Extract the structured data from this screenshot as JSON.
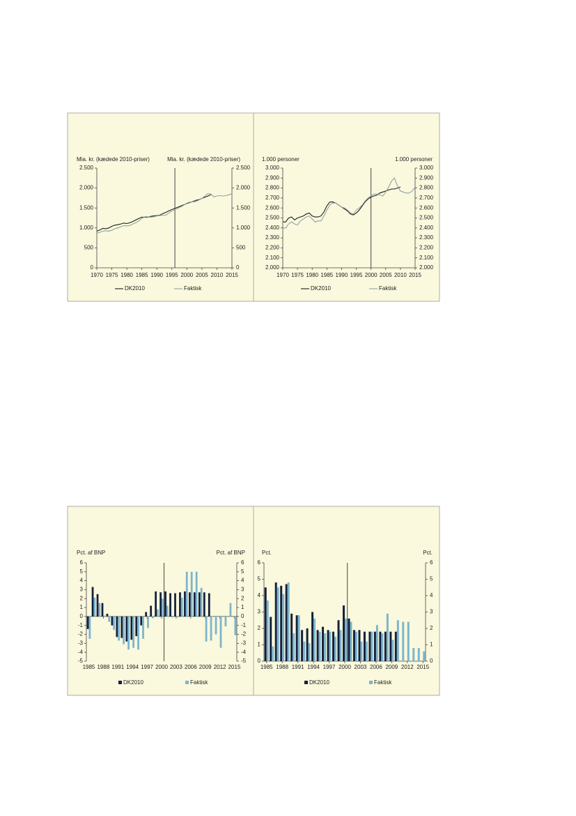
{
  "chart_data": [
    {
      "type": "line",
      "ylabel": "Mia. kr. (kædede 2010-priser)",
      "y2label": "Mia. kr. (kædede 2010-priser)",
      "x": [
        1970,
        1971,
        1972,
        1973,
        1974,
        1975,
        1976,
        1977,
        1978,
        1979,
        1980,
        1981,
        1982,
        1983,
        1984,
        1985,
        1986,
        1987,
        1988,
        1989,
        1990,
        1991,
        1992,
        1993,
        1994,
        1995,
        1996,
        1997,
        1998,
        1999,
        2000,
        2001,
        2002,
        2003,
        2004,
        2005,
        2006,
        2007,
        2008,
        2009,
        2010,
        2011,
        2012,
        2013,
        2014,
        2015
      ],
      "xlim": [
        1970,
        2015
      ],
      "xticks": [
        1970,
        1975,
        1980,
        1985,
        1990,
        1995,
        2000,
        2005,
        2010,
        2015
      ],
      "ylim": [
        0,
        2500
      ],
      "yticks": [
        0,
        500,
        {
          "value": 1000,
          "label": "1.000"
        },
        {
          "value": 1500,
          "label": "1.500"
        },
        {
          "value": 2000,
          "label": "2.000"
        },
        {
          "value": 2500,
          "label": "2.500"
        }
      ],
      "y2lim": [
        0,
        2500
      ],
      "y2ticks": [
        0,
        500,
        {
          "value": 1000,
          "label": "1.000"
        },
        {
          "value": 1500,
          "label": "1.500"
        },
        {
          "value": 2000,
          "label": "2.000"
        },
        {
          "value": 2500,
          "label": "2.500"
        }
      ],
      "vline": 1996,
      "series": [
        {
          "name": "DK2010",
          "color": "#1c1c1c",
          "values": [
            920,
            950,
            990,
            980,
            1000,
            1040,
            1070,
            1080,
            1100,
            1120,
            1110,
            1130,
            1160,
            1200,
            1240,
            1270,
            1270,
            1270,
            1290,
            1300,
            1310,
            1320,
            1360,
            1390,
            1430,
            1460,
            1490,
            1520,
            1550,
            1580,
            1610,
            1640,
            1660,
            1690,
            1710,
            1740,
            1770,
            1800,
            1830,
            null,
            null,
            null,
            null,
            null,
            null,
            null
          ]
        },
        {
          "name": "Faktisk",
          "color": "#8fa3a6",
          "values": [
            860,
            890,
            920,
            930,
            920,
            940,
            980,
            1000,
            1030,
            1060,
            1050,
            1060,
            1100,
            1130,
            1180,
            1240,
            1280,
            1280,
            1270,
            1280,
            1300,
            1310,
            1320,
            1320,
            1380,
            1420,
            1460,
            1490,
            1530,
            1570,
            1620,
            1650,
            1650,
            1660,
            1700,
            1740,
            1800,
            1860,
            1850,
            1780,
            1800,
            1810,
            1800,
            1810,
            1830,
            1860
          ]
        }
      ]
    },
    {
      "type": "line",
      "ylabel": "1.000 personer",
      "y2label": "1.000 personer",
      "x": [
        1970,
        1971,
        1972,
        1973,
        1974,
        1975,
        1976,
        1977,
        1978,
        1979,
        1980,
        1981,
        1982,
        1983,
        1984,
        1985,
        1986,
        1987,
        1988,
        1989,
        1990,
        1991,
        1992,
        1993,
        1994,
        1995,
        1996,
        1997,
        1998,
        1999,
        2000,
        2001,
        2002,
        2003,
        2004,
        2005,
        2006,
        2007,
        2008,
        2009,
        2010,
        2011,
        2012,
        2013,
        2014,
        2015
      ],
      "xlim": [
        1970,
        2015
      ],
      "xticks": [
        1970,
        1975,
        1980,
        1985,
        1990,
        1995,
        2000,
        2005,
        2010,
        2015
      ],
      "ylim": [
        2000,
        3000
      ],
      "yticks": [
        {
          "value": 2000,
          "label": "2.000"
        },
        {
          "value": 2100,
          "label": "2.100"
        },
        {
          "value": 2200,
          "label": "2.200"
        },
        {
          "value": 2300,
          "label": "2.300"
        },
        {
          "value": 2400,
          "label": "2.400"
        },
        {
          "value": 2500,
          "label": "2.500"
        },
        {
          "value": 2600,
          "label": "2.600"
        },
        {
          "value": 2700,
          "label": "2.700"
        },
        {
          "value": 2800,
          "label": "2.800"
        },
        {
          "value": 2900,
          "label": "2.900"
        },
        {
          "value": 3000,
          "label": "3.000"
        }
      ],
      "y2lim": [
        2000,
        3000
      ],
      "y2ticks": [
        {
          "value": 2000,
          "label": "2.000"
        },
        {
          "value": 2100,
          "label": "2.100"
        },
        {
          "value": 2200,
          "label": "2.200"
        },
        {
          "value": 2300,
          "label": "2.300"
        },
        {
          "value": 2400,
          "label": "2.400"
        },
        {
          "value": 2500,
          "label": "2.500"
        },
        {
          "value": 2600,
          "label": "2.600"
        },
        {
          "value": 2700,
          "label": "2.700"
        },
        {
          "value": 2800,
          "label": "2.800"
        },
        {
          "value": 2900,
          "label": "2.900"
        },
        {
          "value": 3000,
          "label": "3.000"
        }
      ],
      "vline": 2000,
      "series": [
        {
          "name": "DK2010",
          "color": "#1c1c1c",
          "values": [
            2460,
            2460,
            2500,
            2510,
            2480,
            2500,
            2510,
            2520,
            2540,
            2550,
            2520,
            2510,
            2510,
            2520,
            2560,
            2620,
            2660,
            2660,
            2650,
            2630,
            2610,
            2590,
            2570,
            2540,
            2530,
            2550,
            2580,
            2620,
            2660,
            2690,
            2710,
            2720,
            2730,
            2750,
            2760,
            2770,
            2780,
            2790,
            2790,
            2800,
            2810,
            null,
            null,
            null,
            null,
            null
          ]
        },
        {
          "name": "Faktisk",
          "color": "#8fa3a6",
          "values": [
            2400,
            2400,
            2440,
            2460,
            2440,
            2430,
            2470,
            2490,
            2510,
            2520,
            2490,
            2460,
            2470,
            2470,
            2520,
            2580,
            2630,
            2650,
            2650,
            2630,
            2610,
            2600,
            2580,
            2550,
            2540,
            2580,
            2600,
            2630,
            2670,
            2700,
            2720,
            2740,
            2740,
            2730,
            2720,
            2760,
            2810,
            2870,
            2900,
            2820,
            2770,
            2760,
            2750,
            2750,
            2770,
            2810
          ]
        }
      ]
    },
    {
      "type": "bar",
      "ylabel": "Pct. af BNP",
      "y2label": "Pct. af BNP",
      "x": [
        1985,
        1986,
        1987,
        1988,
        1989,
        1990,
        1991,
        1992,
        1993,
        1994,
        1995,
        1996,
        1997,
        1998,
        1999,
        2000,
        2001,
        2002,
        2003,
        2004,
        2005,
        2006,
        2007,
        2008,
        2009,
        2010,
        2011,
        2012,
        2013,
        2014,
        2015
      ],
      "xlim": [
        1985,
        2015
      ],
      "xticks": [
        1985,
        1988,
        1991,
        1994,
        1997,
        2000,
        2003,
        2006,
        2009,
        2012,
        2015
      ],
      "ylim": [
        -5,
        6
      ],
      "yticks": [
        -5,
        -4,
        -3,
        -2,
        -1,
        0,
        1,
        2,
        3,
        4,
        5,
        6
      ],
      "y2lim": [
        -5,
        6
      ],
      "y2ticks": [
        -5,
        -4,
        -3,
        -2,
        -1,
        0,
        1,
        2,
        3,
        4,
        5,
        6
      ],
      "vline": 2000,
      "series": [
        {
          "name": "DK2010",
          "color": "#14213d",
          "values": [
            -1.4,
            3.3,
            2.5,
            1.5,
            0.3,
            -1.0,
            -2.3,
            -2.4,
            -2.8,
            -2.6,
            -2.2,
            -1.0,
            0.5,
            1.2,
            2.8,
            2.7,
            2.8,
            2.6,
            2.6,
            2.7,
            2.8,
            2.7,
            2.7,
            2.7,
            2.7,
            2.6,
            null,
            null,
            null,
            null,
            null
          ]
        },
        {
          "name": "Faktisk",
          "color": "#7db5cc",
          "values": [
            -2.5,
            2.1,
            1.5,
            0.1,
            -0.6,
            -1.5,
            -2.7,
            -3.1,
            -3.7,
            -3.5,
            -3.7,
            -2.5,
            -1.3,
            -0.2,
            0.8,
            2.0,
            1.2,
            -0.1,
            -0.1,
            2.1,
            5.0,
            5.0,
            5.0,
            3.2,
            -2.8,
            -2.7,
            -2.0,
            -3.5,
            -1.1,
            1.5,
            -2.1
          ]
        }
      ]
    },
    {
      "type": "bar",
      "ylabel": "Pct.",
      "y2label": "Pct.",
      "x": [
        1985,
        1986,
        1987,
        1988,
        1989,
        1990,
        1991,
        1992,
        1993,
        1994,
        1995,
        1996,
        1997,
        1998,
        1999,
        2000,
        2001,
        2002,
        2003,
        2004,
        2005,
        2006,
        2007,
        2008,
        2009,
        2010,
        2011,
        2012,
        2013,
        2014,
        2015
      ],
      "xlim": [
        1985,
        2015
      ],
      "xticks": [
        1985,
        1988,
        1991,
        1994,
        1997,
        2000,
        2003,
        2006,
        2009,
        2012,
        2015
      ],
      "ylim": [
        0,
        6
      ],
      "yticks": [
        0,
        1,
        2,
        3,
        4,
        5,
        6
      ],
      "y2lim": [
        0,
        6
      ],
      "y2ticks": [
        0,
        1,
        2,
        3,
        4,
        5,
        6
      ],
      "vline": 2000,
      "series": [
        {
          "name": "DK2010",
          "color": "#14213d",
          "values": [
            4.5,
            2.7,
            4.8,
            4.6,
            4.7,
            2.9,
            2.8,
            1.9,
            2.0,
            3.0,
            1.9,
            2.1,
            1.9,
            1.8,
            2.5,
            3.4,
            2.6,
            1.9,
            1.9,
            1.8,
            1.8,
            1.8,
            1.8,
            1.8,
            1.8,
            1.8,
            null,
            null,
            null,
            null,
            null
          ]
        },
        {
          "name": "Faktisk",
          "color": "#7db5cc",
          "values": [
            3.7,
            0.9,
            4.5,
            4.1,
            4.8,
            1.7,
            2.8,
            1.2,
            1.1,
            2.6,
            1.8,
            1.7,
            1.8,
            1.5,
            1.9,
            2.6,
            2.4,
            1.8,
            1.2,
            1.2,
            1.8,
            2.2,
            1.7,
            2.9,
            1.3,
            2.5,
            2.4,
            2.4,
            0.8,
            0.8,
            0.6
          ]
        }
      ]
    }
  ]
}
